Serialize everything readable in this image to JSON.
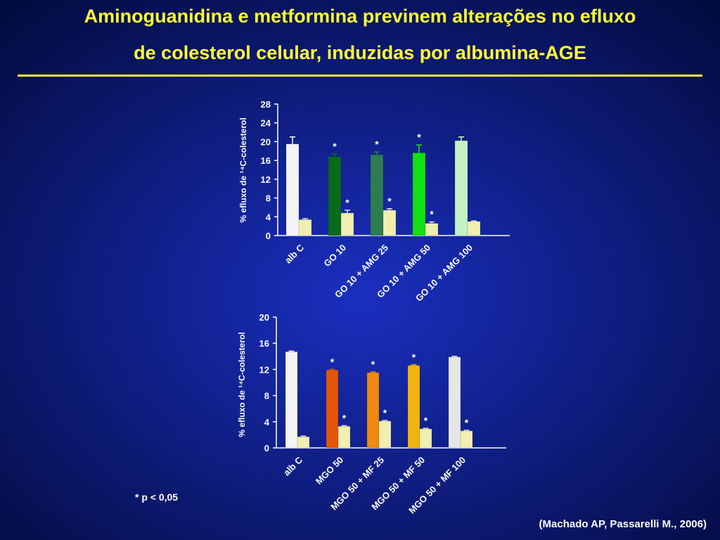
{
  "title_lines": [
    "Aminoguanidina e metformina previnem alterações no efluxo",
    "de colesterol celular, induzidas por albumina-AGE"
  ],
  "chart_data": [
    {
      "type": "bar",
      "y_label": "% efluxo de ¹⁴C-colesterol",
      "categories": [
        "alb C",
        "GO  10",
        "GO 10 + AMG 25",
        "GO 10 + AMG 50",
        "GO  10 + AMG 100"
      ],
      "series": [
        {
          "colors": [
            "#f4f4f4",
            "#0b6a1c",
            "#2e7d52",
            "#12e012",
            "#c4f2c4"
          ],
          "values": [
            19.5,
            16.8,
            17.2,
            17.6,
            20.2
          ],
          "errors": [
            1.5,
            0.6,
            0.6,
            1.7,
            0.8
          ],
          "significance": [
            null,
            "*",
            "*",
            "*",
            null
          ]
        },
        {
          "colors": [
            "#f0eeb0",
            "#f0eeb0",
            "#f0eeb0",
            "#f0eeb0",
            "#f0eeb0"
          ],
          "values": [
            3.4,
            4.8,
            5.4,
            2.6,
            3.0
          ],
          "errors": [
            0.2,
            0.6,
            0.3,
            0.3,
            0.1
          ],
          "significance": [
            null,
            "*",
            "*",
            "*",
            null
          ]
        }
      ],
      "ylim": [
        0,
        28
      ],
      "yticks": [
        0,
        4,
        8,
        12,
        16,
        20,
        24,
        28
      ]
    },
    {
      "type": "bar",
      "y_label": "% efluxo de ¹⁴C-colesterol",
      "categories": [
        "alb C",
        "MGO 50",
        "MGO 50 + MF 25",
        "MGO 50 + MF 50",
        "MGO 50 + MF 100"
      ],
      "series": [
        {
          "colors": [
            "#f4f4f4",
            "#e2560a",
            "#f08a10",
            "#f0b410",
            "#e6e6e6"
          ],
          "values": [
            14.7,
            11.9,
            11.5,
            12.6,
            13.9
          ],
          "errors": [
            0.1,
            0.1,
            0.1,
            0.1,
            0.1
          ],
          "significance": [
            null,
            "*",
            "*",
            "*",
            null
          ]
        },
        {
          "colors": [
            "#f0eeb0",
            "#f0eeb0",
            "#f0eeb0",
            "#f0eeb0",
            "#f0eeb0"
          ],
          "values": [
            1.7,
            3.3,
            4.1,
            2.9,
            2.6
          ],
          "errors": [
            0.1,
            0.1,
            0.1,
            0.1,
            0.1
          ],
          "significance": [
            null,
            "*",
            "*",
            "*",
            "*"
          ]
        }
      ],
      "ylim": [
        0,
        20
      ],
      "yticks": [
        0,
        4,
        8,
        12,
        16,
        20
      ]
    }
  ],
  "footnote": "* p < 0,05",
  "citation": "(Machado AP, Passarelli M., 2006)"
}
